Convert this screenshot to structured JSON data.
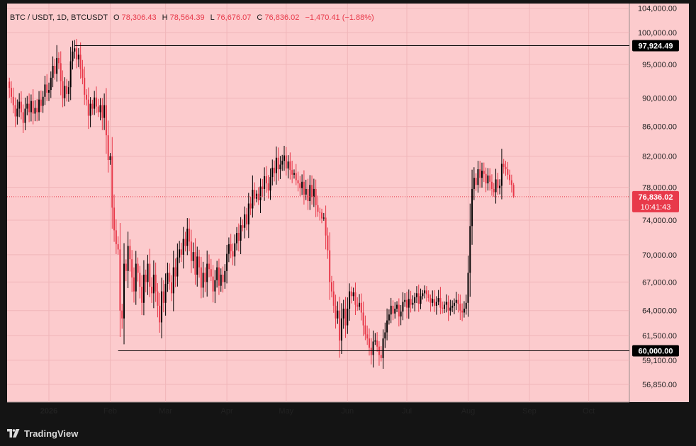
{
  "header": {
    "symbol": "BTC / USDT, 1D, BTCUSDT",
    "o_label": "O",
    "o_value": "78,306.43",
    "h_label": "H",
    "h_value": "78,564.39",
    "l_label": "L",
    "l_value": "76,676.07",
    "c_label": "C",
    "c_value": "76,836.02",
    "change": "−1,470.41 (−1.88%)"
  },
  "brand": {
    "name": "TradingView"
  },
  "colors": {
    "background": "#fccbcd",
    "up": "#000000",
    "down": "#e8394a",
    "frame": "#141414",
    "price_tag": "#e8394a"
  },
  "price_label": {
    "value": "76,836.02",
    "countdown": "10:41:43"
  },
  "levels": [
    {
      "label": "97,924.49",
      "value": 97924.49,
      "start_date": "2026-01-14"
    },
    {
      "label": "60,000.00",
      "value": 60000,
      "start_date": "2026-02-05"
    }
  ],
  "chart_data": {
    "type": "candlestick",
    "symbol": "BTCUSDT",
    "interval": "1D",
    "y_scale": "log",
    "y_ticks": [
      "104,000.00",
      "100,000.00",
      "95,000.00",
      "90,000.00",
      "86,000.00",
      "82,000.00",
      "78,000.00",
      "74,000.00",
      "70,000.00",
      "67,000.00",
      "64,000.00",
      "61,500.00",
      "59,100.00",
      "56,850.00"
    ],
    "x_ticks": [
      {
        "label": "2026",
        "date": "2026-01-01"
      },
      {
        "label": "Feb",
        "date": "2026-02-01"
      },
      {
        "label": "Mar",
        "date": "2026-03-01"
      },
      {
        "label": "Apr",
        "date": "2026-04-01"
      },
      {
        "label": "May",
        "date": "2026-05-01"
      },
      {
        "label": "Jun",
        "date": "2026-06-01"
      },
      {
        "label": "Jul",
        "date": "2026-07-01"
      },
      {
        "label": "Aug",
        "date": "2026-08-01"
      },
      {
        "label": "Sep",
        "date": "2026-09-01"
      },
      {
        "label": "Oct",
        "date": "2026-10-01"
      }
    ],
    "first_date": "2025-12-12",
    "closes": [
      91500,
      90200,
      89000,
      87400,
      88500,
      89500,
      88000,
      86500,
      88500,
      89200,
      88000,
      89600,
      87800,
      88600,
      88000,
      89800,
      88900,
      90200,
      92000,
      90800,
      91200,
      93000,
      94800,
      93600,
      96000,
      95200,
      92500,
      90000,
      91800,
      90600,
      91600,
      95500,
      97000,
      97500,
      95800,
      96500,
      94300,
      93000,
      90500,
      89800,
      87500,
      89200,
      88500,
      90100,
      88800,
      88000,
      89000,
      87200,
      89000,
      84800,
      81500,
      82000,
      75500,
      72800,
      71200,
      70600,
      64000,
      63200,
      69000,
      68200,
      71000,
      69500,
      67500,
      66000,
      69000,
      68000,
      66500,
      64800,
      67800,
      67000,
      69000,
      66500,
      65800,
      67800,
      66000,
      64500,
      62800,
      66000,
      64800,
      66800,
      68000,
      67000,
      65800,
      68600,
      67600,
      69700,
      70600,
      70000,
      71800,
      71000,
      73000,
      71500,
      69300,
      70300,
      67800,
      69800,
      68600,
      66400,
      68000,
      67000,
      69000,
      68400,
      67600,
      66000,
      67200,
      68600,
      66600,
      67800,
      67000,
      68200,
      70100,
      71200,
      70400,
      69800,
      71300,
      72500,
      71600,
      73400,
      73100,
      74700,
      73500,
      76000,
      75400,
      77700,
      76600,
      77200,
      76400,
      78100,
      77800,
      79400,
      78500,
      77600,
      79300,
      80500,
      79800,
      81800,
      80300,
      80900,
      81400,
      82100,
      80400,
      81300,
      80200,
      79600,
      79800,
      78900,
      78500,
      77900,
      78700,
      77100,
      77800,
      76300,
      78300,
      76800,
      77800,
      75800,
      75000,
      74900,
      74200,
      74300,
      72200,
      70500,
      67000,
      66000,
      64500,
      63200,
      64000,
      61000,
      63200,
      64200,
      62500,
      64200,
      66000,
      65500,
      65900,
      64600,
      64400,
      64800,
      63800,
      62500,
      61600,
      61200,
      60300,
      59600,
      60900,
      61000,
      60400,
      59600,
      59300,
      61200,
      61800,
      63000,
      63600,
      64500,
      63700,
      64200,
      64600,
      63400,
      63900,
      64900,
      65100,
      64300,
      65200,
      64600,
      64800,
      65400,
      65800,
      64700,
      65500,
      65800,
      66100,
      65700,
      65300,
      64800,
      65200,
      64500,
      64900,
      65300,
      64300,
      64200,
      64600,
      64900,
      64000,
      64300,
      64500,
      64800,
      65100,
      64700,
      64000,
      63800,
      64200,
      64800,
      68000,
      73300,
      77800,
      79200,
      78300,
      80300,
      79200,
      80100,
      79700,
      78500,
      79500,
      78700,
      77800,
      77400,
      79000,
      77900,
      78200,
      81000,
      80600,
      80300,
      79600,
      78900,
      78306.43,
      76836.02
    ],
    "last_candle": {
      "open": 78306.43,
      "high": 78564.39,
      "low": 76676.07,
      "close": 76836.02,
      "change": -1470.41,
      "change_pct": -1.88
    }
  }
}
